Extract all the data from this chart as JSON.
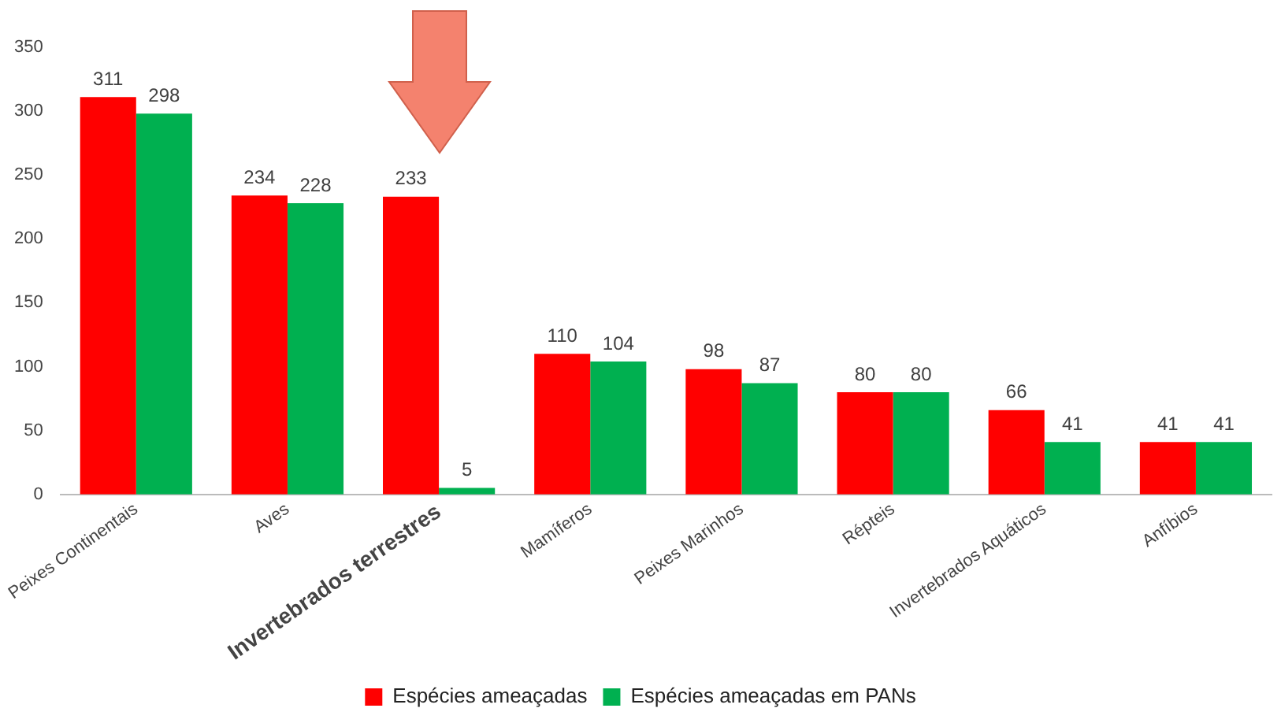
{
  "chart_data": {
    "type": "bar",
    "categories": [
      "Peixes Continentais",
      "Aves",
      "Invertebrados terrestres",
      "Mamíferos",
      "Peixes Marinhos",
      "Répteis",
      "Invertebrados Aquáticos",
      "Anfíbios"
    ],
    "series": [
      {
        "name": "Espécies ameaçadas",
        "color": "#ff0000",
        "values": [
          311,
          234,
          233,
          110,
          98,
          80,
          66,
          41
        ]
      },
      {
        "name": "Espécies ameaçadas em PANs",
        "color": "#00b050",
        "values": [
          298,
          228,
          5,
          104,
          87,
          80,
          41,
          41
        ]
      }
    ],
    "ylim": [
      0,
      350
    ],
    "yticks": [
      0,
      50,
      100,
      150,
      200,
      250,
      300,
      350
    ],
    "grid": false,
    "legend": "bottom",
    "data_labels": true
  }
}
